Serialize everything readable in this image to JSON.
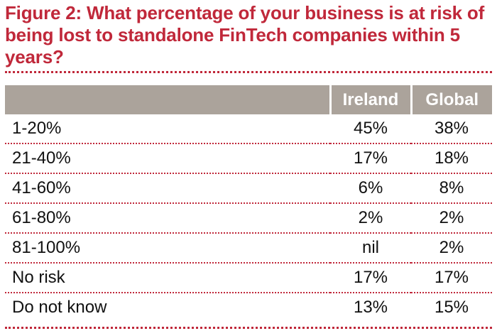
{
  "figure": {
    "title": "Figure 2: What percentage of your business is at risk of being lost to standalone FinTech companies within 5 years?"
  },
  "colors": {
    "title": "#c0283a",
    "header_bg": "#aba39b",
    "rule": "#c0283a"
  },
  "chart_data": {
    "type": "table",
    "title": "Figure 2: What percentage of your business is at risk of being lost to standalone FinTech companies within 5 years?",
    "columns": [
      "",
      "Ireland",
      "Global"
    ],
    "rows": [
      {
        "label": "1-20%",
        "ireland": "45%",
        "global": "38%"
      },
      {
        "label": "21-40%",
        "ireland": "17%",
        "global": "18%"
      },
      {
        "label": "41-60%",
        "ireland": "6%",
        "global": "8%"
      },
      {
        "label": "61-80%",
        "ireland": "2%",
        "global": "2%"
      },
      {
        "label": "81-100%",
        "ireland": "nil",
        "global": "2%"
      },
      {
        "label": "No risk",
        "ireland": "17%",
        "global": "17%"
      },
      {
        "label": "Do not know",
        "ireland": "13%",
        "global": "15%"
      }
    ]
  }
}
